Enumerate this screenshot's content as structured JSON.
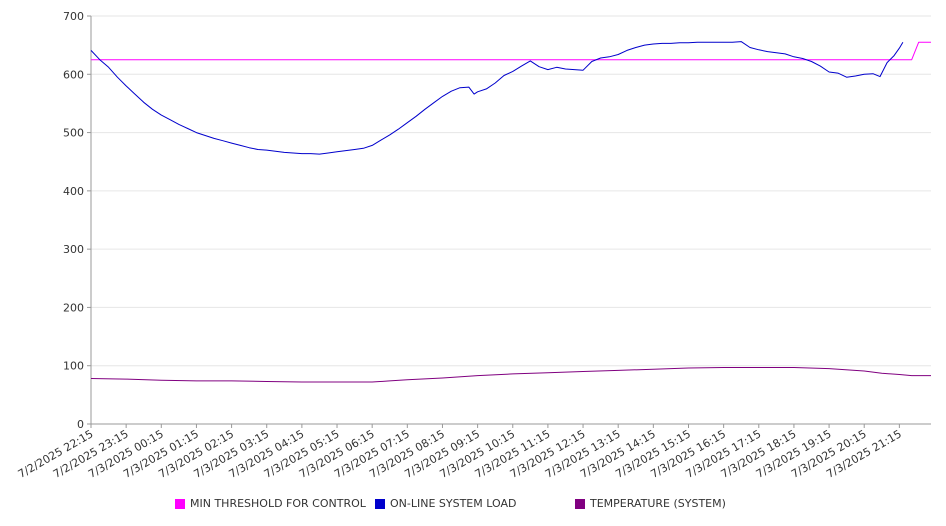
{
  "chart_data": {
    "type": "line",
    "ylim": [
      0,
      700
    ],
    "yticks": [
      0,
      100,
      200,
      300,
      400,
      500,
      600,
      700
    ],
    "grid": true,
    "legend_position": "bottom",
    "x_tick_labels": [
      "7/2/2025 22:15",
      "7/2/2025 23:15",
      "7/3/2025 00:15",
      "7/3/2025 01:15",
      "7/3/2025 02:15",
      "7/3/2025 03:15",
      "7/3/2025 04:15",
      "7/3/2025 05:15",
      "7/3/2025 06:15",
      "7/3/2025 07:15",
      "7/3/2025 08:15",
      "7/3/2025 09:15",
      "7/3/2025 10:15",
      "7/3/2025 11:15",
      "7/3/2025 12:15",
      "7/3/2025 13:15",
      "7/3/2025 14:15",
      "7/3/2025 15:15",
      "7/3/2025 16:15",
      "7/3/2025 17:15",
      "7/3/2025 18:15",
      "7/3/2025 19:15",
      "7/3/2025 20:15",
      "7/3/2025 21:15"
    ],
    "x_start": "7/2/2025 22:15",
    "x_end": "7/3/2025 22:15",
    "x_tick_positions": [
      0,
      1,
      2,
      3,
      4,
      5,
      6,
      7,
      8,
      9,
      10,
      11,
      12,
      13,
      14,
      15,
      16,
      17,
      18,
      19,
      20,
      21,
      22,
      23
    ],
    "series": [
      {
        "name": "MIN THRESHOLD FOR CONTROL",
        "color": "#ff00ff",
        "points": [
          [
            0,
            625
          ],
          [
            23.35,
            625
          ],
          [
            23.55,
            655
          ],
          [
            23.9,
            655
          ]
        ]
      },
      {
        "name": "ON-LINE SYSTEM LOAD",
        "color": "#0000cc",
        "points": [
          [
            0,
            641
          ],
          [
            0.25,
            625
          ],
          [
            0.5,
            612
          ],
          [
            0.75,
            595
          ],
          [
            1,
            580
          ],
          [
            1.25,
            566
          ],
          [
            1.5,
            552
          ],
          [
            1.75,
            540
          ],
          [
            2,
            530
          ],
          [
            2.25,
            522
          ],
          [
            2.5,
            514
          ],
          [
            2.75,
            507
          ],
          [
            3,
            500
          ],
          [
            3.25,
            495
          ],
          [
            3.5,
            490
          ],
          [
            3.75,
            486
          ],
          [
            4,
            482
          ],
          [
            4.25,
            478
          ],
          [
            4.5,
            474
          ],
          [
            4.75,
            471
          ],
          [
            5,
            470
          ],
          [
            5.25,
            468
          ],
          [
            5.5,
            466
          ],
          [
            5.75,
            465
          ],
          [
            6,
            464
          ],
          [
            6.25,
            464
          ],
          [
            6.5,
            463
          ],
          [
            6.75,
            465
          ],
          [
            7,
            467
          ],
          [
            7.25,
            469
          ],
          [
            7.5,
            471
          ],
          [
            7.75,
            473
          ],
          [
            8,
            478
          ],
          [
            8.25,
            487
          ],
          [
            8.5,
            496
          ],
          [
            8.75,
            506
          ],
          [
            9,
            517
          ],
          [
            9.25,
            528
          ],
          [
            9.5,
            540
          ],
          [
            9.75,
            551
          ],
          [
            10,
            562
          ],
          [
            10.25,
            571
          ],
          [
            10.5,
            577
          ],
          [
            10.75,
            578
          ],
          [
            10.9,
            566
          ],
          [
            11,
            570
          ],
          [
            11.25,
            575
          ],
          [
            11.5,
            585
          ],
          [
            11.75,
            598
          ],
          [
            12,
            605
          ],
          [
            12.25,
            614
          ],
          [
            12.5,
            623
          ],
          [
            12.75,
            613
          ],
          [
            13,
            608
          ],
          [
            13.25,
            612
          ],
          [
            13.5,
            609
          ],
          [
            13.75,
            608
          ],
          [
            14,
            607
          ],
          [
            14.25,
            622
          ],
          [
            14.5,
            628
          ],
          [
            14.75,
            630
          ],
          [
            15,
            634
          ],
          [
            15.25,
            641
          ],
          [
            15.5,
            646
          ],
          [
            15.75,
            650
          ],
          [
            16,
            652
          ],
          [
            16.25,
            653
          ],
          [
            16.5,
            653
          ],
          [
            16.75,
            654
          ],
          [
            17,
            654
          ],
          [
            17.25,
            655
          ],
          [
            17.5,
            655
          ],
          [
            17.75,
            655
          ],
          [
            18,
            655
          ],
          [
            18.25,
            655
          ],
          [
            18.5,
            656
          ],
          [
            18.75,
            646
          ],
          [
            19,
            642
          ],
          [
            19.25,
            639
          ],
          [
            19.5,
            637
          ],
          [
            19.75,
            635
          ],
          [
            20,
            630
          ],
          [
            20.25,
            627
          ],
          [
            20.5,
            622
          ],
          [
            20.75,
            614
          ],
          [
            21,
            604
          ],
          [
            21.25,
            602
          ],
          [
            21.5,
            595
          ],
          [
            21.75,
            597
          ],
          [
            22,
            600
          ],
          [
            22.25,
            601
          ],
          [
            22.45,
            596
          ],
          [
            22.65,
            620
          ],
          [
            22.85,
            632
          ],
          [
            23,
            645
          ],
          [
            23.1,
            655
          ]
        ]
      },
      {
        "name": "TEMPERATURE (SYSTEM)",
        "color": "#800080",
        "points": [
          [
            0,
            78
          ],
          [
            1,
            77
          ],
          [
            2,
            75
          ],
          [
            3,
            74
          ],
          [
            4,
            74
          ],
          [
            5,
            73
          ],
          [
            6,
            72
          ],
          [
            7,
            72
          ],
          [
            8,
            72
          ],
          [
            8.5,
            74
          ],
          [
            9,
            76
          ],
          [
            10,
            79
          ],
          [
            11,
            83
          ],
          [
            12,
            86
          ],
          [
            13,
            88
          ],
          [
            14,
            90
          ],
          [
            15,
            92
          ],
          [
            16,
            94
          ],
          [
            17,
            96
          ],
          [
            18,
            97
          ],
          [
            19,
            97
          ],
          [
            20,
            97
          ],
          [
            21,
            95
          ],
          [
            22,
            91
          ],
          [
            22.5,
            87
          ],
          [
            23,
            85
          ],
          [
            23.35,
            83
          ],
          [
            23.9,
            83
          ]
        ]
      }
    ]
  },
  "legend": {
    "items": [
      {
        "label": "MIN THRESHOLD FOR CONTROL",
        "color": "#ff00ff"
      },
      {
        "label": "ON-LINE SYSTEM LOAD",
        "color": "#0000cc"
      },
      {
        "label": "TEMPERATURE (SYSTEM)",
        "color": "#800080"
      }
    ]
  }
}
